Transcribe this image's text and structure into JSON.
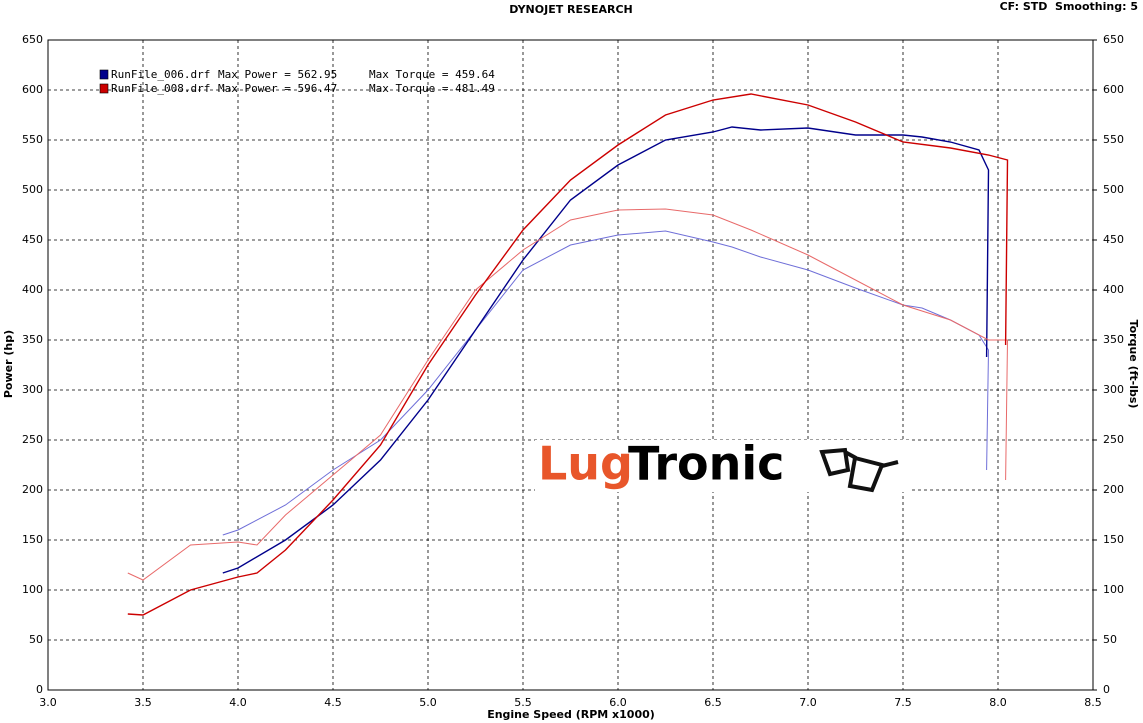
{
  "chart_data": {
    "type": "line",
    "title": "DYNOJET RESEARCH",
    "settings_text": "CF: STD  Smoothing: 5",
    "xlabel": "Engine Speed (RPM x1000)",
    "ylabel": "Power (hp)",
    "y2label": "Torque (ft-lbs)",
    "xlim": [
      3,
      8.5
    ],
    "xticks": [
      {
        "value": 3,
        "label": "3.0"
      },
      3.5,
      {
        "value": 4,
        "label": "4.0"
      },
      4.5,
      {
        "value": 5,
        "label": "5.0"
      },
      5.5,
      {
        "value": 6,
        "label": "6.0"
      },
      6.5,
      {
        "value": 7,
        "label": "7.0"
      },
      7.5,
      {
        "value": 8,
        "label": "8.0"
      },
      8.5
    ],
    "ylim": [
      0,
      650
    ],
    "yticks": [
      0,
      50,
      100,
      150,
      200,
      250,
      300,
      350,
      400,
      450,
      500,
      550,
      600,
      650
    ],
    "y2lim": [
      0,
      650
    ],
    "y2ticks": [
      0,
      50,
      100,
      150,
      200,
      250,
      300,
      350,
      400,
      450,
      500,
      550,
      600,
      650
    ],
    "grid": true,
    "logo": [
      "Lug",
      "Tronic"
    ],
    "runs": [
      {
        "name": "RunFile_006.drf",
        "max_power_label": "Max Power = 562.95",
        "max_torque_label": "Max Torque = 459.64",
        "power_color": "#00008b",
        "torque_color": "#6f6fd8",
        "x": [
          3.92,
          4.0,
          4.25,
          4.5,
          4.75,
          5.0,
          5.25,
          5.5,
          5.75,
          6.0,
          6.25,
          6.5,
          6.6,
          6.75,
          7.0,
          7.25,
          7.5,
          7.6,
          7.75,
          7.9,
          7.95,
          7.94
        ],
        "power": [
          117,
          122,
          150,
          185,
          230,
          290,
          360,
          430,
          490,
          525,
          550,
          558,
          563,
          560,
          562,
          555,
          555,
          553,
          548,
          540,
          520,
          333
        ],
        "torque": [
          155,
          160,
          185,
          220,
          250,
          300,
          360,
          420,
          445,
          455,
          459,
          448,
          443,
          433,
          420,
          402,
          385,
          382,
          370,
          355,
          340,
          220
        ]
      },
      {
        "name": "RunFile_008.drf",
        "max_power_label": "Max Power = 596.47",
        "max_torque_label": "Max Torque = 481.49",
        "power_color": "#cc0000",
        "torque_color": "#e86a6a",
        "x": [
          3.42,
          3.5,
          3.75,
          4.0,
          4.1,
          4.25,
          4.5,
          4.75,
          5.0,
          5.25,
          5.5,
          5.75,
          6.0,
          6.25,
          6.5,
          6.7,
          7.0,
          7.25,
          7.5,
          7.75,
          7.95,
          8.05,
          8.04
        ],
        "power": [
          76,
          75,
          100,
          113,
          117,
          140,
          190,
          245,
          325,
          395,
          460,
          510,
          545,
          575,
          590,
          596,
          585,
          568,
          548,
          542,
          535,
          530,
          345
        ],
        "torque": [
          117,
          110,
          145,
          148,
          145,
          175,
          215,
          255,
          330,
          400,
          440,
          470,
          480,
          481,
          475,
          460,
          435,
          410,
          385,
          370,
          350,
          350,
          210
        ]
      }
    ]
  }
}
